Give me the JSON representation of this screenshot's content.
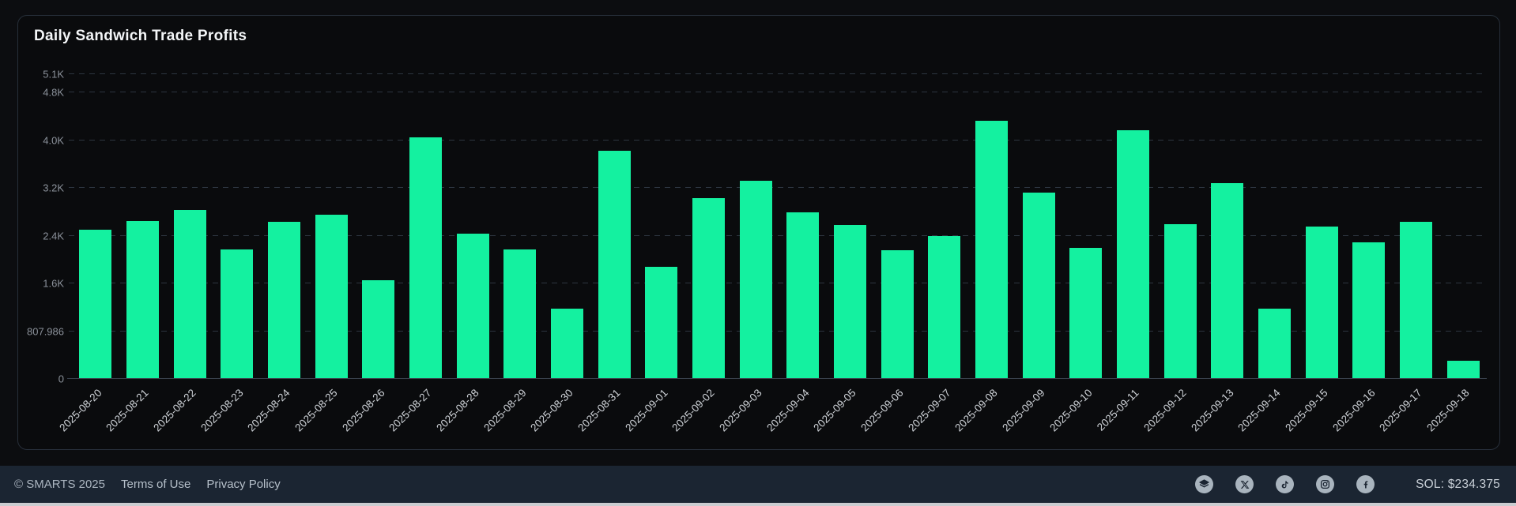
{
  "chart": {
    "title": "Daily Sandwich Trade Profits"
  },
  "chart_data": {
    "type": "bar",
    "title": "Daily Sandwich Trade Profits",
    "categories": [
      "2025-08-20",
      "2025-08-21",
      "2025-08-22",
      "2025-08-23",
      "2025-08-24",
      "2025-08-25",
      "2025-08-26",
      "2025-08-27",
      "2025-08-28",
      "2025-08-29",
      "2025-08-30",
      "2025-08-31",
      "2025-09-01",
      "2025-09-02",
      "2025-09-03",
      "2025-09-04",
      "2025-09-05",
      "2025-09-06",
      "2025-09-07",
      "2025-09-08",
      "2025-09-09",
      "2025-09-10",
      "2025-09-11",
      "2025-09-12",
      "2025-09-13",
      "2025-09-14",
      "2025-09-15",
      "2025-09-16",
      "2025-09-17",
      "2025-09-18"
    ],
    "values": [
      2510,
      2660,
      2840,
      2180,
      2650,
      2770,
      1660,
      4080,
      2450,
      2180,
      1170,
      3850,
      1890,
      3040,
      3340,
      2800,
      2590,
      2160,
      2400,
      4350,
      3140,
      2200,
      4190,
      2600,
      3300,
      1180,
      2570,
      2300,
      2640,
      290
    ],
    "xlabel": "",
    "ylabel": "",
    "ylim": [
      0,
      5396
    ],
    "grid": true,
    "legend_position": "none",
    "gridlines": [
      {
        "value": 0,
        "label": "0"
      },
      {
        "value": 807.986,
        "label": "807.986"
      },
      {
        "value": 1615.972,
        "label": "1.6K"
      },
      {
        "value": 2423.958,
        "label": "2.4K"
      },
      {
        "value": 3231.944,
        "label": "3.2K"
      },
      {
        "value": 4039.93,
        "label": "4.0K"
      },
      {
        "value": 4847.916,
        "label": "4.8K"
      },
      {
        "value": 5151,
        "label": "5.1K"
      }
    ]
  },
  "colors": {
    "bar_green": "#14F1A0",
    "card_background": "#0a0b0d",
    "page_background": "#0c0d10",
    "footer_background": "#1b2532",
    "gridline": "#2d3540"
  },
  "footer": {
    "copyright": "© SMARTS 2025",
    "links": [
      {
        "label": "Terms of Use"
      },
      {
        "label": "Privacy Policy"
      }
    ],
    "social_icons": [
      "substack-layers-icon",
      "x-icon",
      "tiktok-icon",
      "instagram-icon",
      "facebook-icon"
    ],
    "sol_price": "SOL: $234.375"
  }
}
